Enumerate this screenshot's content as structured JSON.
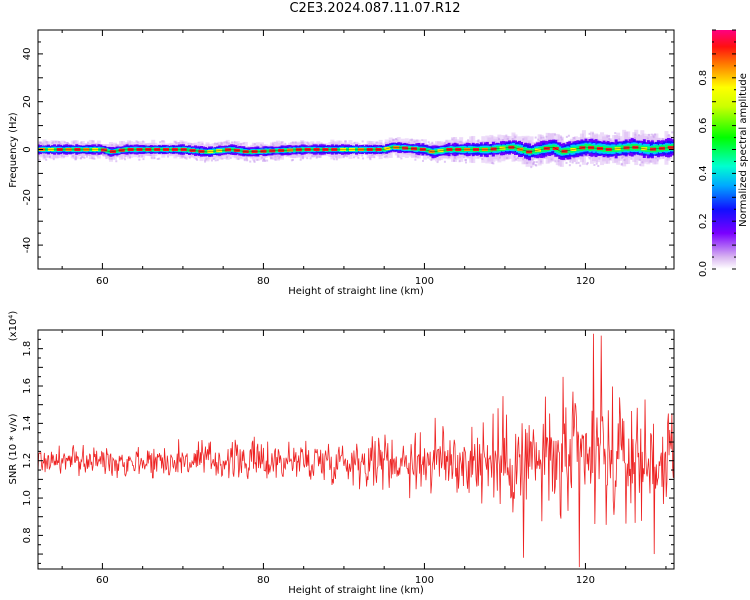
{
  "title": "C2E3.2024.087.11.07.R12",
  "chart_data": [
    {
      "type": "heatmap",
      "xlabel": "Height of straight line (km)",
      "ylabel": "Frequency (Hz)",
      "xlim": [
        52,
        131
      ],
      "ylim": [
        -50,
        50
      ],
      "x_ticks": [
        60,
        80,
        100,
        120
      ],
      "y_ticks": [
        -40,
        -20,
        0,
        20,
        40
      ],
      "colorbar": {
        "label": "Normalized spectral amplitude",
        "range": [
          0,
          1
        ],
        "ticks": [
          "0.0",
          "0.2",
          "0.4",
          "0.6",
          "0.8"
        ],
        "colormap": "rainbow (white-purple-blue-cyan-green-yellow-red-magenta)"
      },
      "peak_frequency_trace": {
        "x": [
          52,
          60,
          61,
          63,
          70,
          73,
          76,
          78,
          85,
          95,
          96,
          100,
          101,
          103,
          108,
          111,
          113,
          116,
          117,
          120,
          123,
          126,
          128,
          131
        ],
        "y": [
          0,
          0,
          -1,
          0,
          0,
          -1,
          0,
          -1,
          0,
          0,
          1,
          0,
          -1,
          0,
          0,
          1,
          -1,
          1,
          -1,
          1,
          0,
          1,
          0,
          1
        ]
      },
      "spread_envelope_hz": {
        "x": [
          52,
          95,
          110,
          120,
          131
        ],
        "halfwidth": [
          3,
          3,
          4.5,
          5.5,
          5.5
        ]
      }
    },
    {
      "type": "line",
      "xlabel": "Height of straight line (km)",
      "ylabel": "SNR (10 * v/v)",
      "y_multiplier": "(x10⁴)",
      "xlim": [
        52,
        131
      ],
      "ylim": [
        0.62,
        1.9
      ],
      "x_ticks": [
        60,
        80,
        100,
        120
      ],
      "y_ticks": [
        "0.8",
        "1.0",
        "1.2",
        "1.4",
        "1.6",
        "1.8"
      ],
      "series": [
        {
          "color": "#ee2222",
          "baseline": 1.2,
          "amplitude_envelope": {
            "x": [
              52,
              60,
              70,
              80,
              90,
              95,
              100,
              105,
              110,
              115,
              120,
              125,
              131
            ],
            "halfwidth": [
              0.07,
              0.07,
              0.09,
              0.1,
              0.11,
              0.13,
              0.17,
              0.2,
              0.24,
              0.3,
              0.34,
              0.28,
              0.22
            ]
          },
          "extremes": [
            {
              "x": 119.2,
              "y": 0.63
            },
            {
              "x": 121.0,
              "y": 1.88
            },
            {
              "x": 122.0,
              "y": 1.87
            },
            {
              "x": 112.3,
              "y": 0.68
            },
            {
              "x": 128.5,
              "y": 0.7
            }
          ]
        }
      ]
    }
  ]
}
